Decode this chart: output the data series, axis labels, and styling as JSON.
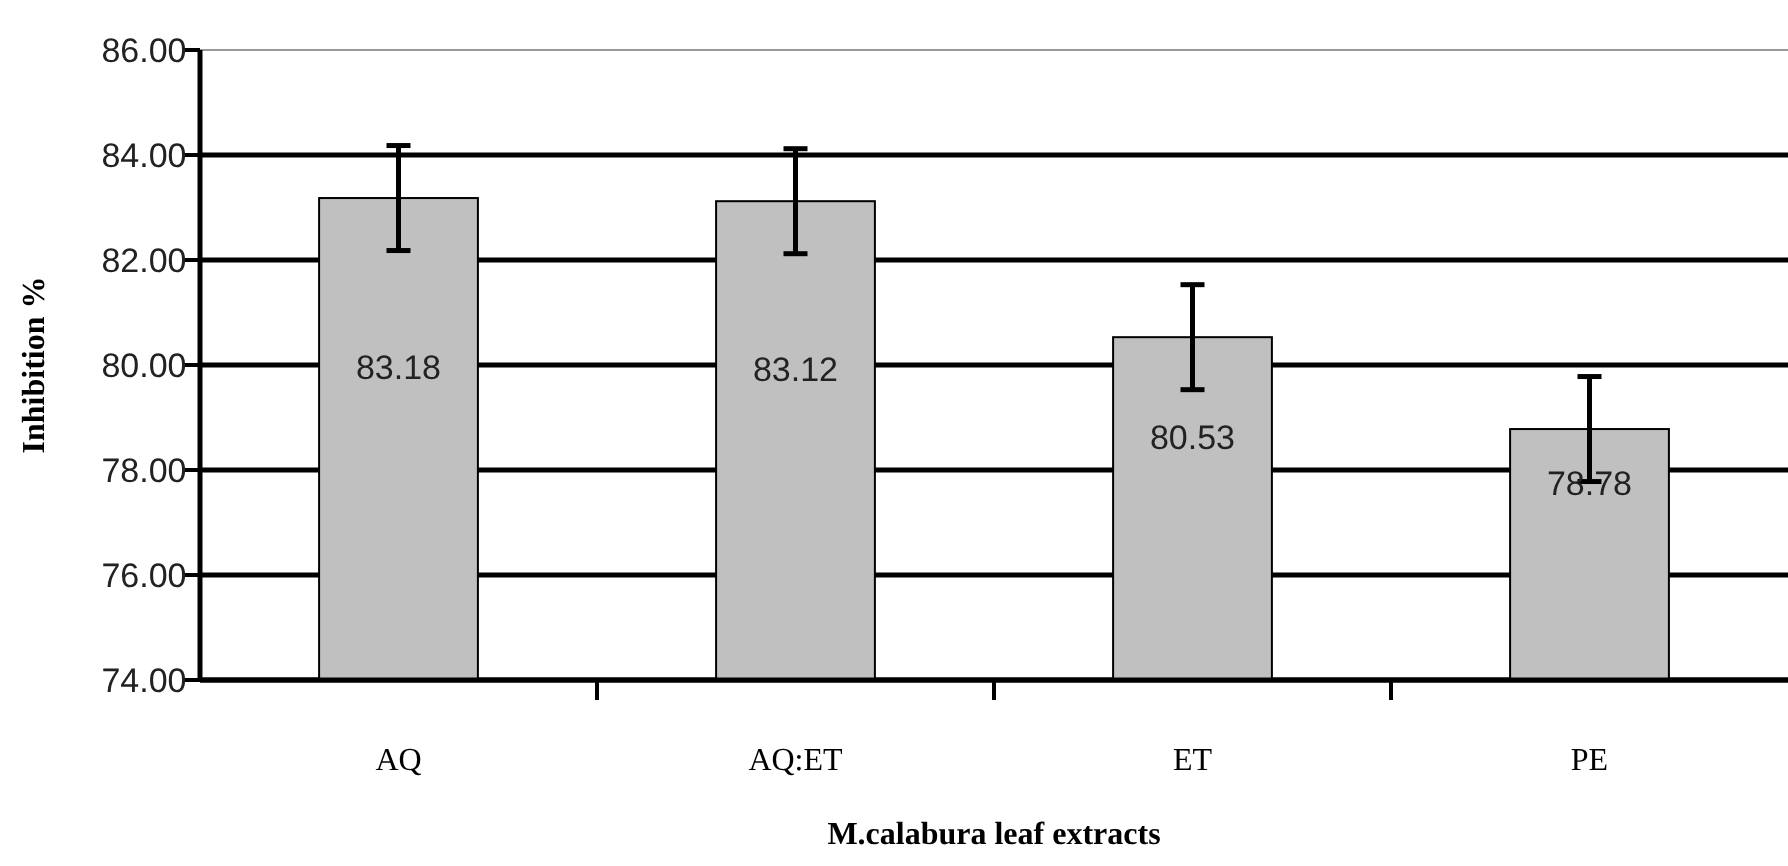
{
  "chart_data": {
    "type": "bar",
    "categories": [
      "AQ",
      "AQ:ET",
      "ET",
      "PE"
    ],
    "values": [
      83.18,
      83.12,
      80.53,
      78.78
    ],
    "errors": [
      1.0,
      1.0,
      1.0,
      1.0
    ],
    "color": "#c0c0c0",
    "data_labels": true,
    "ylim": [
      74,
      86
    ],
    "yticks": [
      {
        "value": 74,
        "label": "74.00"
      },
      {
        "value": 76,
        "label": "76.00"
      },
      {
        "value": 78,
        "label": "78.00"
      },
      {
        "value": 80,
        "label": "80.00"
      },
      {
        "value": 82,
        "label": "82.00"
      },
      {
        "value": 84,
        "label": "84.00"
      },
      {
        "value": 86,
        "label": "86.00"
      }
    ],
    "grid": "y",
    "xlabel": "M.calabura leaf extracts",
    "ylabel": "Inhibition %"
  }
}
